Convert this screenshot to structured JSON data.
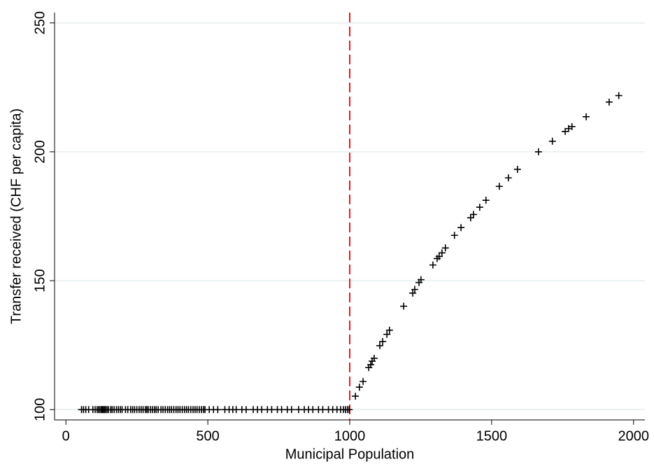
{
  "chart_data": {
    "type": "scatter",
    "x_label": "Municipal Population",
    "y_label": "Transfer received (CHF per capita)",
    "x": [
      55,
      62,
      70,
      80,
      95,
      103,
      110,
      115,
      120,
      125,
      128,
      132,
      136,
      140,
      145,
      150,
      158,
      163,
      170,
      178,
      185,
      192,
      198,
      210,
      218,
      228,
      235,
      242,
      250,
      258,
      265,
      272,
      280,
      285,
      290,
      298,
      305,
      312,
      318,
      325,
      335,
      342,
      350,
      358,
      365,
      372,
      380,
      388,
      395,
      402,
      410,
      418,
      425,
      432,
      440,
      448,
      455,
      462,
      470,
      478,
      485,
      490,
      505,
      520,
      535,
      560,
      575,
      588,
      600,
      620,
      635,
      660,
      675,
      690,
      710,
      725,
      745,
      760,
      780,
      795,
      820,
      840,
      855,
      870,
      890,
      905,
      925,
      940,
      955,
      968,
      978,
      985,
      992,
      998,
      1020,
      1034,
      1047,
      1067,
      1074,
      1079,
      1086,
      1106,
      1116,
      1131,
      1140,
      1190,
      1222,
      1229,
      1244,
      1251,
      1293,
      1308,
      1315,
      1325,
      1337,
      1369,
      1392,
      1426,
      1436,
      1458,
      1480,
      1527,
      1559,
      1591,
      1665,
      1714,
      1759,
      1771,
      1783,
      1833,
      1914,
      1948
    ],
    "values": [
      100,
      100,
      100,
      100,
      100,
      100,
      100,
      100,
      100,
      100,
      100,
      100,
      100,
      100,
      100,
      100,
      100,
      100,
      100,
      100,
      100,
      100,
      100,
      100,
      100,
      100,
      100,
      100,
      100,
      100,
      100,
      100,
      100,
      100,
      100,
      100,
      100,
      100,
      100,
      100,
      100,
      100,
      100,
      100,
      100,
      100,
      100,
      100,
      100,
      100,
      100,
      100,
      100,
      100,
      100,
      100,
      100,
      100,
      100,
      100,
      100,
      100,
      100,
      100,
      100,
      100,
      100,
      100,
      100,
      100,
      100,
      100,
      100,
      100,
      100,
      100,
      100,
      100,
      100,
      100,
      100,
      100,
      100,
      100,
      100,
      100,
      100,
      100,
      100,
      100,
      100,
      100,
      100,
      100,
      105.2,
      108.7,
      110.9,
      116.3,
      117.4,
      118.8,
      119.9,
      124.8,
      126.4,
      129.2,
      130.8,
      140.1,
      145.2,
      146.6,
      149.3,
      150.4,
      156.1,
      158.6,
      159.4,
      160.8,
      162.7,
      167.6,
      170.6,
      174.4,
      175.7,
      178.5,
      181.2,
      186.6,
      189.9,
      193.2,
      200.0,
      204.1,
      207.9,
      209.0,
      209.8,
      213.6,
      219.3,
      221.8
    ],
    "color": "#000000",
    "xlim": [
      -40,
      2040
    ],
    "ylim": [
      96,
      254
    ],
    "xticks": [
      0,
      500,
      1000,
      1500,
      2000
    ],
    "yticks": [
      100,
      150,
      200,
      250
    ],
    "grid": true,
    "vline": {
      "value": 1000,
      "color": "#e8191f"
    }
  }
}
